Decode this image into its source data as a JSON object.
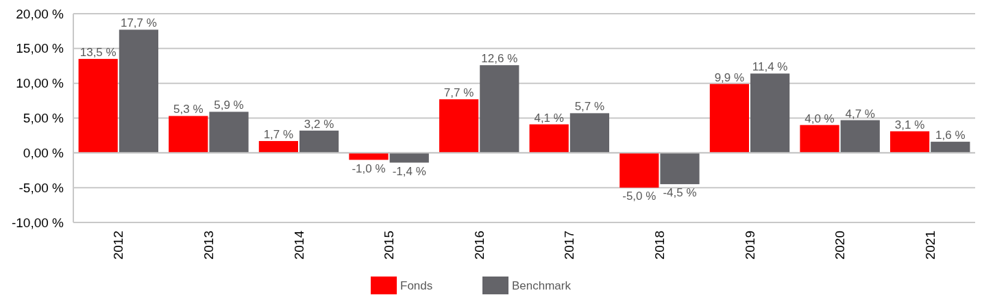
{
  "chart_data": {
    "type": "bar",
    "categories": [
      "2012",
      "2013",
      "2014",
      "2015",
      "2016",
      "2017",
      "2018",
      "2019",
      "2020",
      "2021"
    ],
    "series": [
      {
        "name": "Fonds",
        "color": "#ff0000",
        "values": [
          13.5,
          5.3,
          1.7,
          -1.0,
          7.7,
          4.1,
          -5.0,
          9.9,
          4.0,
          3.1
        ],
        "value_labels": [
          "13,5 %",
          "5,3 %",
          "1,7 %",
          "-1,0 %",
          "7,7 %",
          "4,1 %",
          "-5,0 %",
          "9,9 %",
          "4,0 %",
          "3,1 %"
        ]
      },
      {
        "name": "Benchmark",
        "color": "#646469",
        "values": [
          17.7,
          5.9,
          3.2,
          -1.4,
          12.6,
          5.7,
          -4.5,
          11.4,
          4.7,
          1.6
        ],
        "value_labels": [
          "17,7 %",
          "5,9 %",
          "3,2 %",
          "-1,4 %",
          "12,6 %",
          "5,7 %",
          "-4,5 %",
          "11,4 %",
          "4,7 %",
          "1,6 %"
        ]
      }
    ],
    "ylim": [
      -10,
      20
    ],
    "yticks": [
      {
        "value": -10,
        "label": "-10,00 %"
      },
      {
        "value": -5,
        "label": "-5,00 %"
      },
      {
        "value": 0,
        "label": "0,00 %"
      },
      {
        "value": 5,
        "label": "5,00 %"
      },
      {
        "value": 10,
        "label": "10,00 %"
      },
      {
        "value": 15,
        "label": "15,00 %"
      },
      {
        "value": 20,
        "label": "20,00 %"
      }
    ],
    "grid": "y",
    "legend": "bottom"
  }
}
